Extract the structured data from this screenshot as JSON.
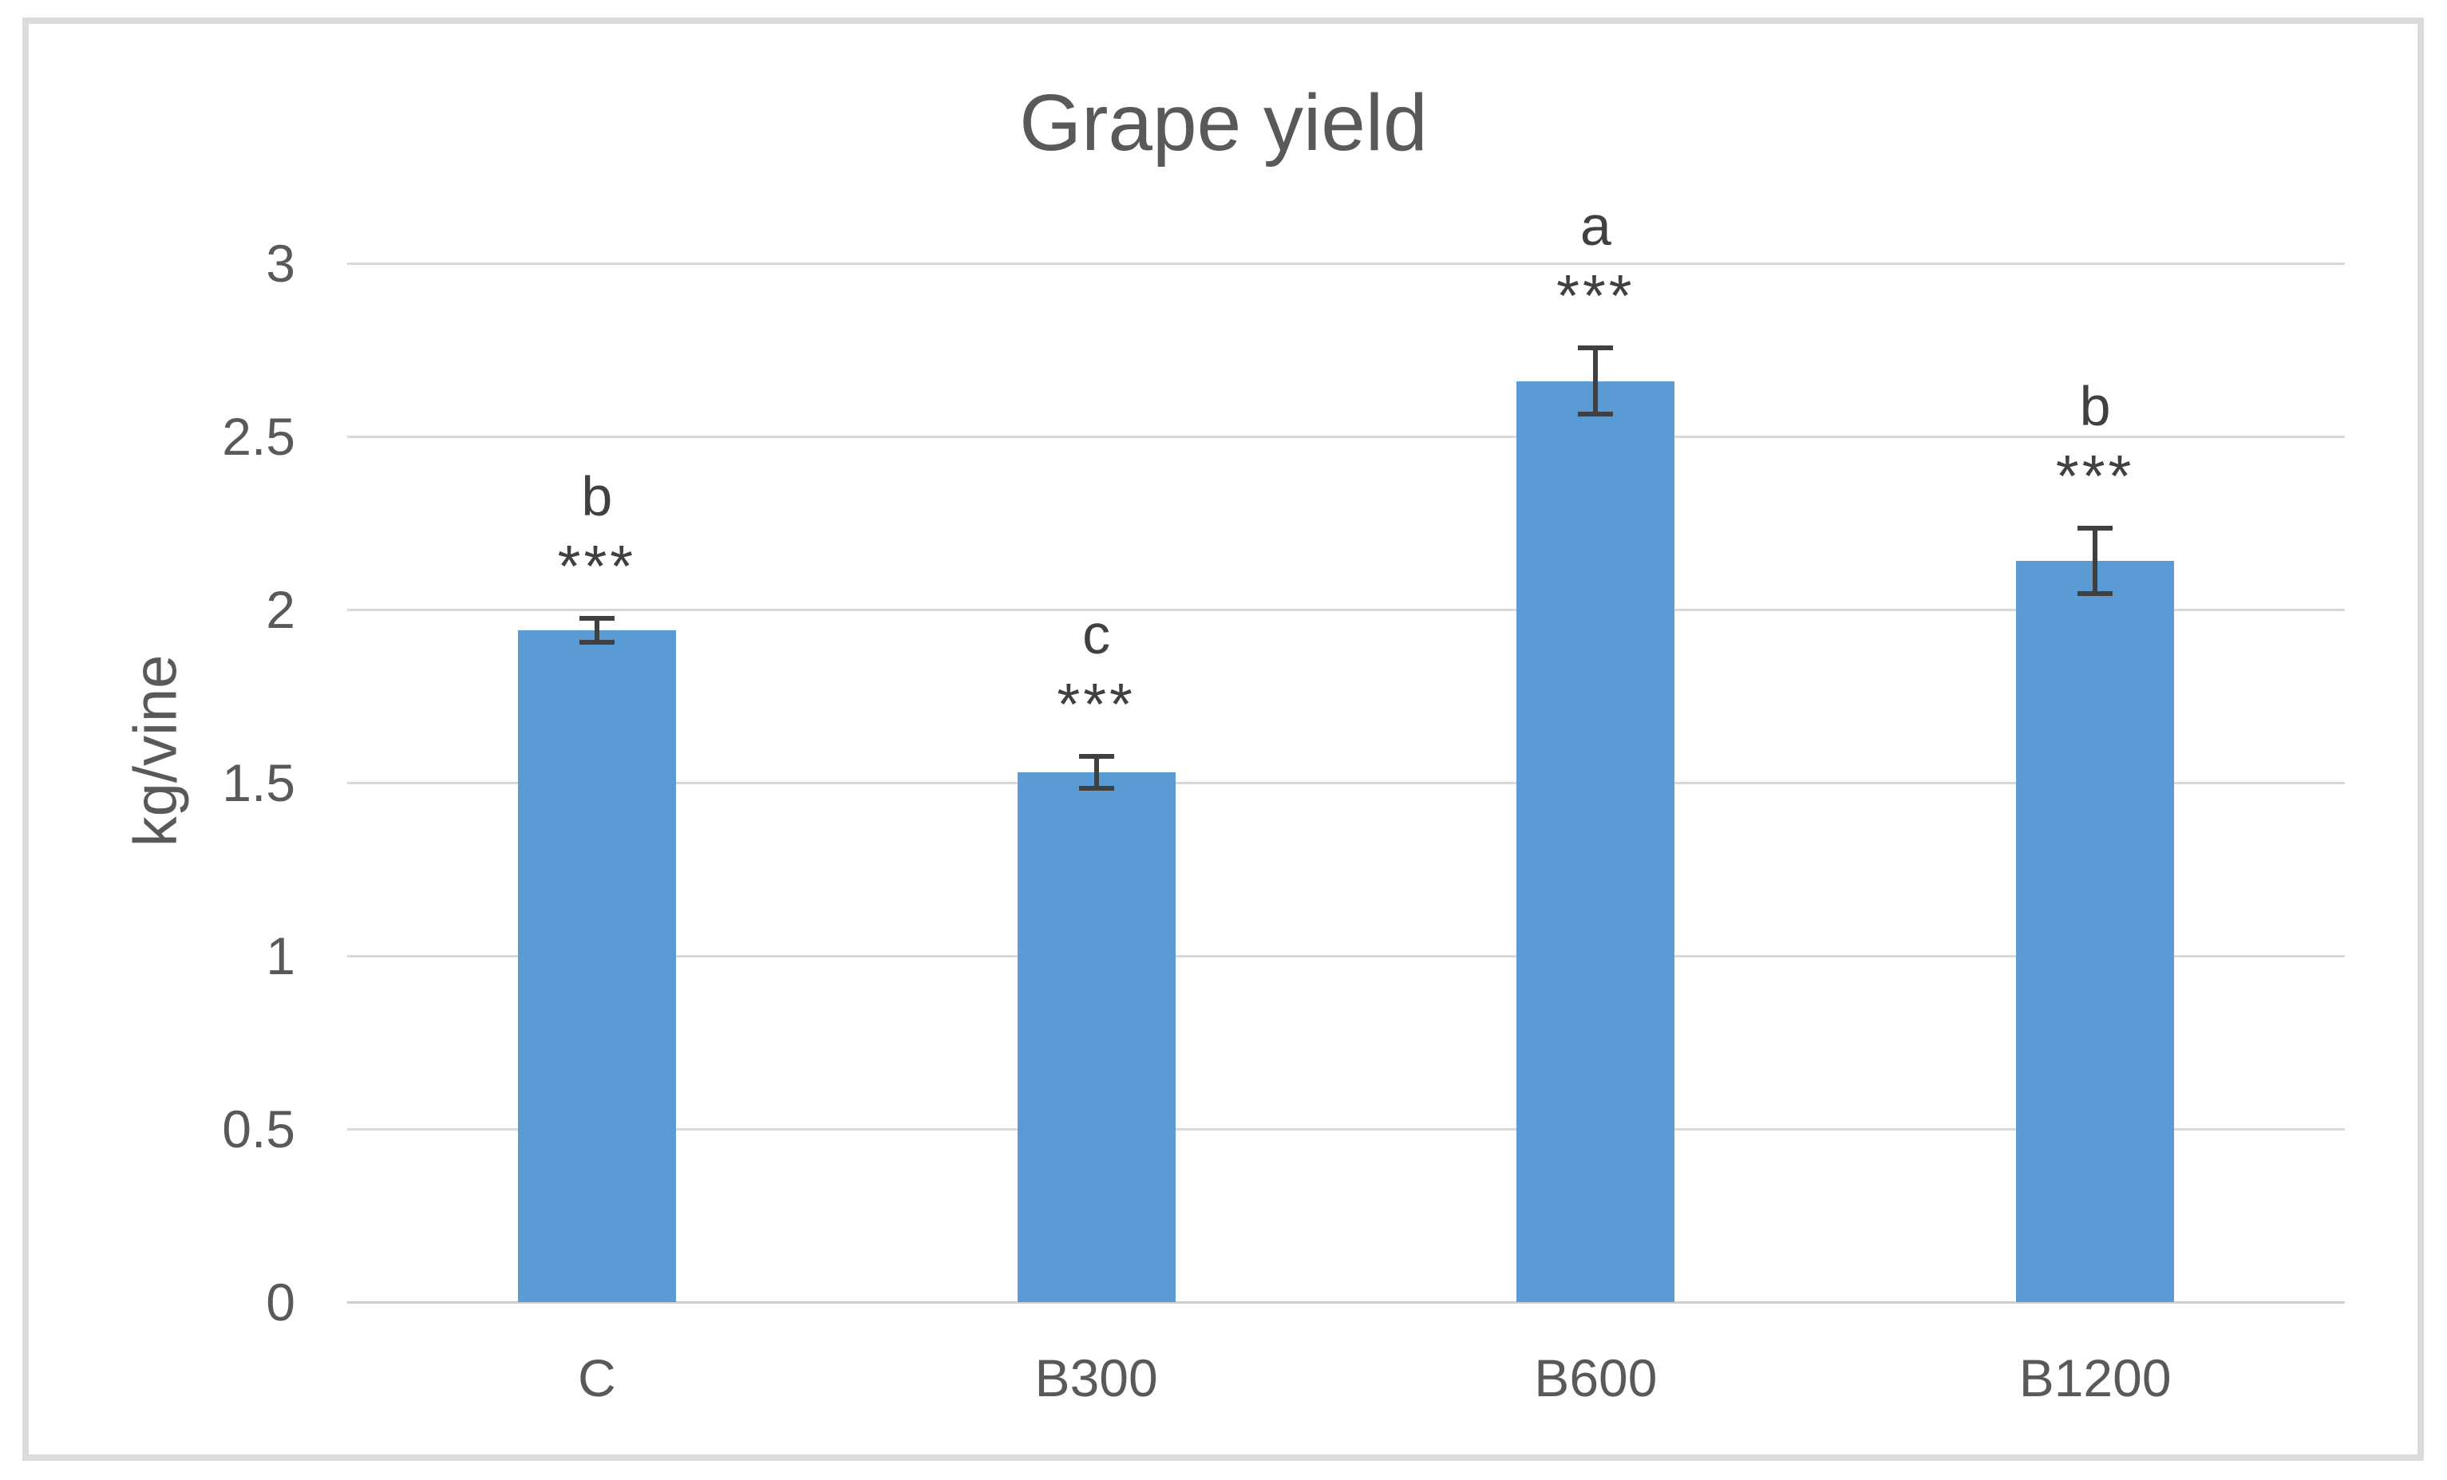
{
  "chart": {
    "title": "Grape yield",
    "y_axis_title": "kg/vine"
  },
  "chart_data": {
    "type": "bar",
    "title": "Grape yield",
    "xlabel": "",
    "ylabel": "kg/vine",
    "categories": [
      "C",
      "B300",
      "B600",
      "B1200"
    ],
    "values": [
      1.94,
      1.53,
      2.66,
      2.14
    ],
    "error_bars": [
      0.035,
      0.045,
      0.095,
      0.095
    ],
    "sig_letters": [
      "b",
      "c",
      "a",
      "b"
    ],
    "sig_stars": [
      "***",
      "***",
      "***",
      "***"
    ],
    "ylim": [
      0,
      3
    ],
    "yticks": [
      0,
      0.5,
      1,
      1.5,
      2,
      2.5,
      3
    ],
    "ytick_labels": [
      "0",
      "0.5",
      "1",
      "1.5",
      "2",
      "2.5",
      "3"
    ],
    "grid": true,
    "legend_position": "none",
    "bar_color": "#5b9bd5",
    "error_bar_color": "#404040",
    "gridline_color": "#d9d9d9",
    "axis_line_color": "#cfcdcd",
    "text_color": "#595959",
    "frame_border_color": "#dbdbdb"
  }
}
